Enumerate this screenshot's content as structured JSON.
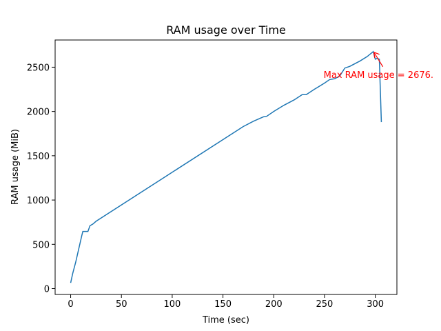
{
  "chart_data": {
    "type": "line",
    "title": "RAM usage over Time",
    "x_label": "Time (sec)",
    "y_label": "RAM usage (MiB)",
    "x": [
      0,
      2,
      5,
      8,
      11,
      12,
      17,
      19,
      22,
      25,
      170,
      180,
      190,
      193,
      200,
      210,
      215,
      220,
      228,
      232,
      240,
      250,
      255,
      260,
      265,
      270,
      275,
      285,
      292,
      298,
      300,
      302,
      304,
      306
    ],
    "series": [
      {
        "name": "RAM usage",
        "color": "#1f77b4",
        "values": [
          65,
          170,
          300,
          450,
          600,
          645,
          645,
          710,
          730,
          760,
          1830,
          1890,
          1940,
          1945,
          2000,
          2070,
          2100,
          2130,
          2190,
          2190,
          2250,
          2320,
          2360,
          2370,
          2400,
          2490,
          2510,
          2570,
          2620,
          2676,
          2590,
          2600,
          2590,
          1880
        ]
      }
    ],
    "xlim": [
      -15.3,
      321.3
    ],
    "ylim": [
      -66,
      2807
    ],
    "xticks": [
      0,
      50,
      100,
      150,
      200,
      250,
      300
    ],
    "yticks": [
      0,
      500,
      1000,
      1500,
      2000,
      2500
    ],
    "annotation": {
      "text": "Max RAM usage = 2676.",
      "x": 298,
      "y": 2676,
      "color": "red"
    }
  }
}
